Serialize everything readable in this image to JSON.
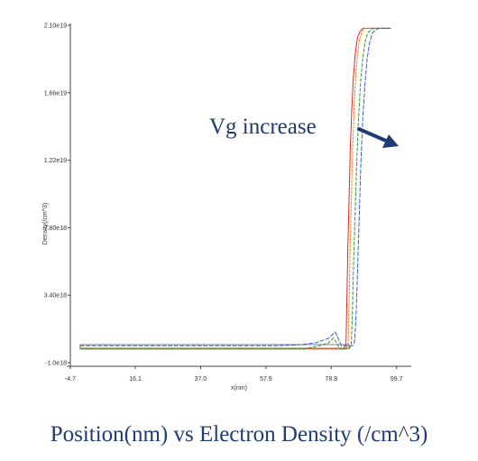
{
  "caption": "Position(nm) vs Electron Density (/cm^3)",
  "chart_data": {
    "type": "line",
    "title": "",
    "xlabel": "x(nm)",
    "ylabel": "Density(/cm^3)",
    "xlim": [
      -4.7,
      104.4
    ],
    "ylim": [
      -1e+18,
      2.1e+19
    ],
    "xticks": [
      -4.7,
      16.1,
      37.0,
      57.9,
      78.8,
      99.7
    ],
    "xtick_labels": [
      "-4.7",
      "16.1",
      "37.0",
      "57.9",
      "78.8",
      "99.7"
    ],
    "yticks": [
      -1e+18,
      3.4e+18,
      7.8e+18,
      1.22e+19,
      1.66e+19,
      2.1e+19
    ],
    "ytick_labels": [
      "-1.0e18",
      "3.40e18",
      "7.80e18",
      "1.22e19",
      "1.66e19",
      "2.10e19"
    ],
    "grid": false,
    "annotation": {
      "text": "Vg increase",
      "arrow": true
    },
    "annotation_color": "#1f3b73",
    "series": [
      {
        "color": "#d62728",
        "x": [
          -1.6,
          82.8,
          83.5,
          83.8,
          84.1,
          84.5,
          84.9,
          85.4,
          85.9,
          86.5,
          87.2,
          88.0,
          88.9,
          89.8,
          90.7,
          91.8,
          93.0,
          96.0,
          97.2
        ],
        "y": [
          -1e+17,
          -1e+17,
          2e+17,
          3e+18,
          6.5e+18,
          9.8e+18,
          1.3e+19,
          1.57e+19,
          1.77e+19,
          1.92e+19,
          2.02e+19,
          2.06e+19,
          2.08e+19,
          2.08e+19,
          2.08e+19,
          2.08e+19,
          2.08e+19,
          2.08e+19,
          2.08e+19
        ]
      },
      {
        "color": "#ff7f0e",
        "x": [
          -1.6,
          83.6,
          84.2,
          84.5,
          84.8,
          85.2,
          85.6,
          86.1,
          86.6,
          87.2,
          87.9,
          88.7,
          89.6,
          90.5,
          91.4,
          92.5,
          93.7,
          96.4,
          97.4
        ],
        "y": [
          -1e+17,
          -1e+17,
          2e+17,
          2.8e+18,
          6.2e+18,
          9.5e+18,
          1.27e+19,
          1.55e+19,
          1.76e+19,
          1.91e+19,
          2.01e+19,
          2.06e+19,
          2.08e+19,
          2.08e+19,
          2.08e+19,
          2.08e+19,
          2.08e+19,
          2.08e+19,
          2.08e+19
        ]
      },
      {
        "color": "#2ca02c",
        "x": [
          -1.6,
          70.0,
          75.0,
          78.0,
          79.5,
          80.5,
          81.5,
          84.5,
          85.2,
          85.6,
          86.0,
          86.5,
          87.0,
          87.6,
          88.2,
          88.9,
          89.7,
          90.5,
          91.4,
          92.3,
          93.3,
          94.5,
          96.8,
          97.6
        ],
        "y": [
          -1e+17,
          -1e+17,
          1e+17,
          3e+17,
          6e+17,
          3e+17,
          -1e+17,
          -1e+17,
          2e+17,
          2.6e+18,
          5.9e+18,
          9.2e+18,
          1.24e+19,
          1.52e+19,
          1.74e+19,
          1.89e+19,
          2e+19,
          2.05e+19,
          2.07e+19,
          2.08e+19,
          2.08e+19,
          2.08e+19,
          2.08e+19,
          2.08e+19
        ]
      },
      {
        "color": "#3b5bdb",
        "x": [
          -1.6,
          60.0,
          68.0,
          74.0,
          78.0,
          80.0,
          81.0,
          82.0,
          85.6,
          86.3,
          86.8,
          87.3,
          87.8,
          88.3,
          88.9,
          89.6,
          90.3,
          91.1,
          92.0,
          93.0,
          94.0,
          95.2,
          97.2,
          97.9
        ],
        "y": [
          1e+17,
          1e+17,
          1.5e+17,
          3e+17,
          6e+17,
          1e+18,
          6e+17,
          1e+17,
          1e+17,
          4e+17,
          2.4e+18,
          5.6e+18,
          8.9e+18,
          1.21e+19,
          1.5e+19,
          1.72e+19,
          1.88e+19,
          1.99e+19,
          2.05e+19,
          2.07e+19,
          2.08e+19,
          2.08e+19,
          2.08e+19,
          2.08e+19
        ]
      }
    ]
  }
}
